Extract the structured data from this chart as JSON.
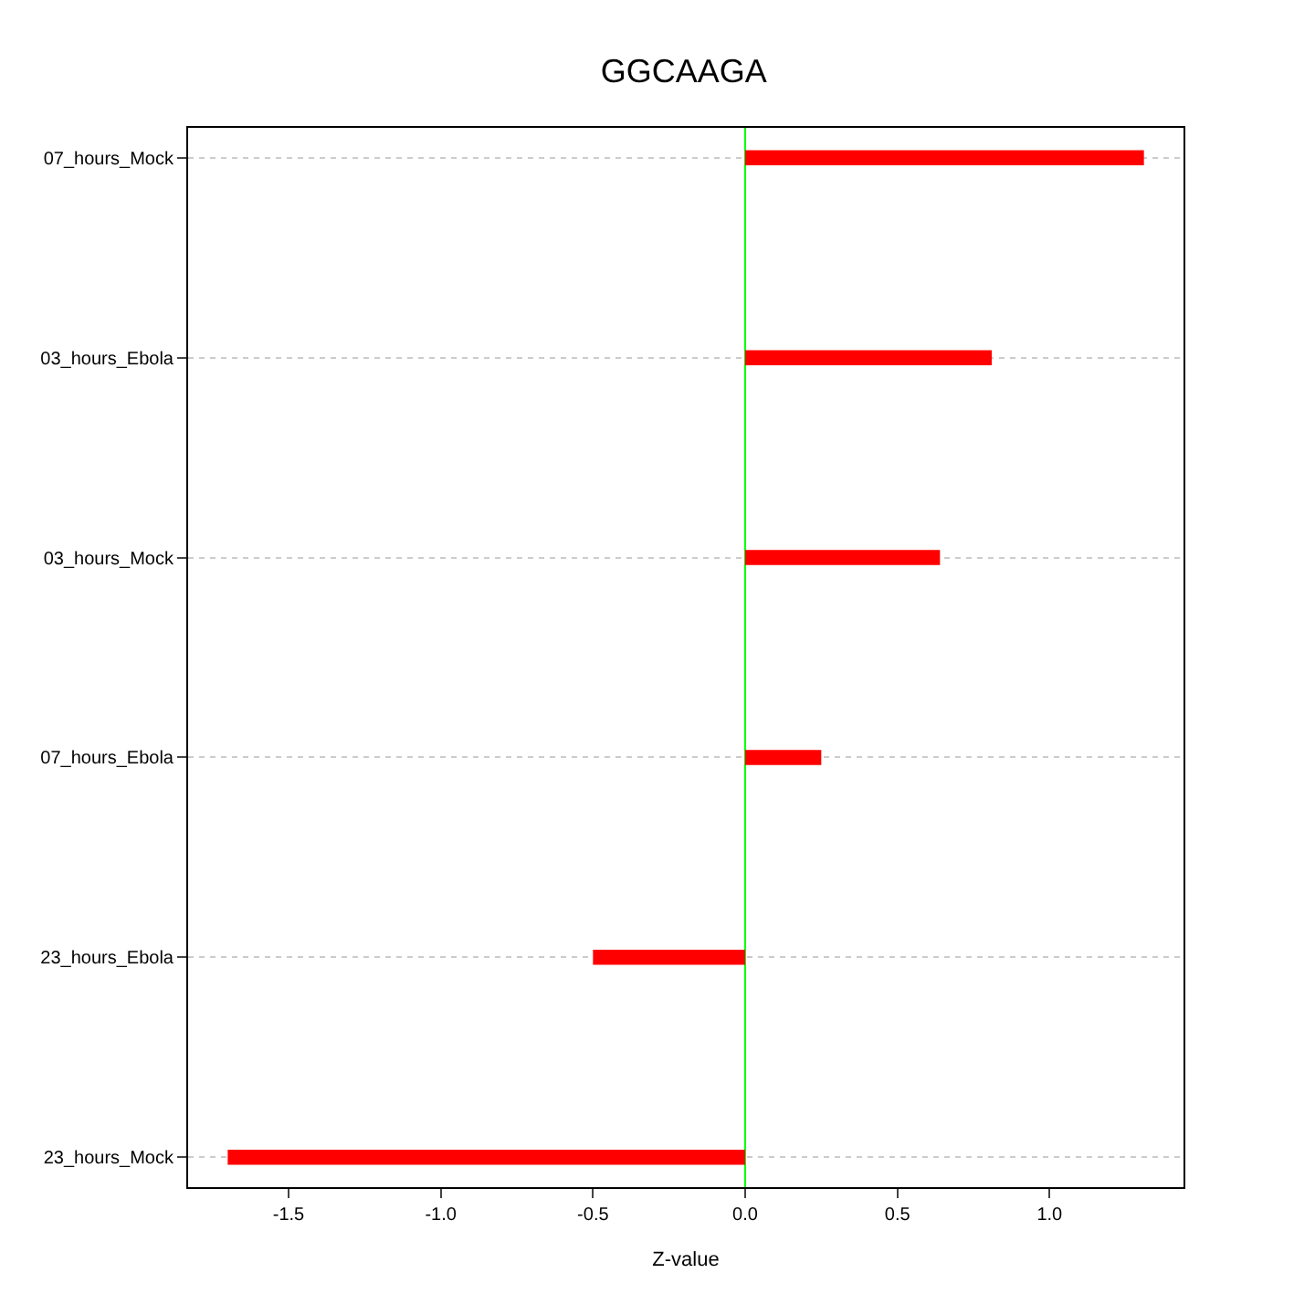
{
  "chart_data": {
    "type": "bar",
    "orientation": "horizontal",
    "title": "GGCAAGA",
    "xlabel": "Z-value",
    "categories": [
      "07_hours_Mock",
      "03_hours_Ebola",
      "03_hours_Mock",
      "07_hours_Ebola",
      "23_hours_Ebola",
      "23_hours_Mock"
    ],
    "values": [
      1.31,
      0.81,
      0.64,
      0.25,
      -0.5,
      -1.7
    ],
    "color": "#ff0000",
    "xlim": [
      -1.83,
      1.44
    ],
    "xticks": [
      {
        "value": -1.5,
        "label": "-1.5"
      },
      {
        "value": -1.0,
        "label": "-1.0"
      },
      {
        "value": -0.5,
        "label": "-0.5"
      },
      {
        "value": 0.0,
        "label": "0.0"
      },
      {
        "value": 0.5,
        "label": "0.5"
      },
      {
        "value": 1.0,
        "label": "1.0"
      }
    ],
    "grid": "y",
    "ref_lines": [
      {
        "axis": "x",
        "value": 0,
        "color": "#00ff00"
      }
    ]
  }
}
